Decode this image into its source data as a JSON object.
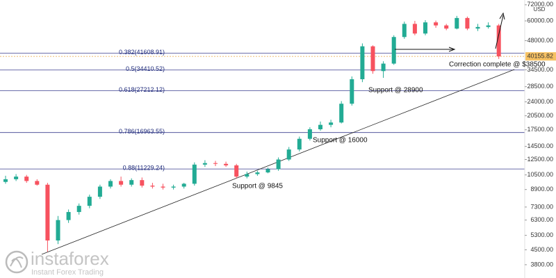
{
  "chart_data": {
    "type": "candlestick",
    "open": [
      9700,
      10000,
      10300,
      9800,
      9400,
      5000,
      6300,
      6900,
      7400,
      8200,
      9200,
      9800,
      9400,
      9900,
      9300,
      9200,
      9100,
      9200,
      9500,
      11800,
      12000,
      11900,
      11700,
      10300,
      10600,
      10800,
      11200,
      12500,
      14000,
      15800,
      17600,
      18500,
      19000,
      23500,
      31000,
      45000,
      34000,
      37000,
      50000,
      58000,
      52000,
      59000,
      57000,
      55000,
      62000,
      55000,
      56000,
      57000
    ],
    "high": [
      10400,
      10600,
      10500,
      10000,
      9600,
      6600,
      7100,
      7600,
      8400,
      9400,
      10000,
      10300,
      10100,
      10200,
      9600,
      9500,
      9400,
      9600,
      12100,
      12400,
      12300,
      12200,
      11900,
      10900,
      11000,
      11400,
      12800,
      14400,
      16200,
      18000,
      19200,
      19600,
      24200,
      32000,
      46500,
      45500,
      38000,
      51000,
      59500,
      60000,
      60500,
      60200,
      58000,
      63500,
      63000,
      58000,
      59000,
      58000
    ],
    "low": [
      9500,
      9800,
      9600,
      9300,
      4400,
      4800,
      6100,
      6700,
      7200,
      8000,
      9000,
      9200,
      9200,
      9100,
      9000,
      8900,
      8900,
      9000,
      9300,
      11500,
      11600,
      11500,
      10100,
      10100,
      10400,
      10700,
      11000,
      12300,
      13700,
      15500,
      17300,
      18000,
      18800,
      23000,
      30000,
      33000,
      31500,
      36500,
      49000,
      51000,
      51000,
      55500,
      54000,
      54500,
      54000,
      53500,
      55000,
      39000
    ],
    "close": [
      10000,
      10300,
      9800,
      9400,
      5000,
      6300,
      6900,
      7400,
      8200,
      9200,
      9800,
      9400,
      9900,
      9300,
      9200,
      9100,
      9200,
      9500,
      11800,
      12000,
      11900,
      11700,
      10300,
      10600,
      10800,
      11200,
      12500,
      14000,
      15800,
      17600,
      18500,
      19000,
      23500,
      31000,
      45000,
      34000,
      37000,
      50000,
      58000,
      52000,
      59000,
      57000,
      55000,
      62000,
      55000,
      56000,
      57000,
      40155.82
    ],
    "up_color": "#22ab94",
    "down_color": "#f7525f",
    "log_scale": true,
    "ylim": [
      3270,
      76000
    ],
    "yticks": [
      {
        "value": 72000,
        "label": "72000.00"
      },
      {
        "value": 60000,
        "label": "60000.00"
      },
      {
        "value": 48000,
        "label": "48000.00"
      },
      {
        "value": 34500,
        "label": "34500.00"
      },
      {
        "value": 28500,
        "label": "28500.00"
      },
      {
        "value": 24000,
        "label": "24000.00"
      },
      {
        "value": 20500,
        "label": "20500.00"
      },
      {
        "value": 17500,
        "label": "17500.00"
      },
      {
        "value": 14500,
        "label": "14500.00"
      },
      {
        "value": 12500,
        "label": "12500.00"
      },
      {
        "value": 10500,
        "label": "10500.00"
      },
      {
        "value": 8900,
        "label": "8900.00"
      },
      {
        "value": 7300,
        "label": "7300.00"
      },
      {
        "value": 6300,
        "label": "6300.00"
      },
      {
        "value": 5300,
        "label": "5300.00"
      },
      {
        "value": 4500,
        "label": "4500.00"
      },
      {
        "value": 3800,
        "label": "3800.00"
      }
    ],
    "axis_unit": "USD",
    "current_price": {
      "value": 40155.82,
      "label": "40155.82"
    },
    "fib_levels": [
      {
        "value": 41608.91,
        "label": "0.382(41608.91)"
      },
      {
        "value": 34410.52,
        "label": "0.5(34410.52)"
      },
      {
        "value": 27212.12,
        "label": "0.618(27212.12)"
      },
      {
        "value": 16963.55,
        "label": "0.786(16963.55)"
      },
      {
        "value": 11229.24,
        "label": "0.88(11229.24)"
      }
    ],
    "annotations": [
      "Correction complete @ $38500",
      "Support @ 28900",
      "Support @ 16000",
      "Support @ 9845"
    ],
    "watermark": {
      "brand": "instaforex",
      "tagline": "Instant Forex Trading"
    }
  }
}
